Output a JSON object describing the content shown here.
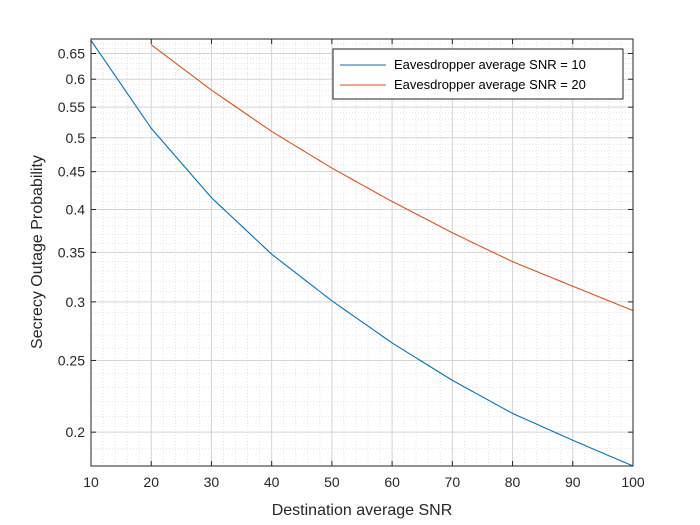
{
  "chart_data": {
    "type": "line",
    "xlabel": "Destination average SNR",
    "ylabel": "Secrecy Outage Probability",
    "xlim": [
      10,
      100
    ],
    "ylim": [
      0.18,
      0.68
    ],
    "yscale": "log",
    "grid": true,
    "minor_grid": true,
    "legend_position": "top-right",
    "x_ticks": [
      10,
      20,
      30,
      40,
      50,
      60,
      70,
      80,
      90,
      100
    ],
    "x_tick_labels": [
      "10",
      "20",
      "30",
      "40",
      "50",
      "60",
      "70",
      "80",
      "90",
      "100"
    ],
    "y_ticks": [
      0.2,
      0.25,
      0.3,
      0.35,
      0.4,
      0.45,
      0.5,
      0.55,
      0.6,
      0.65
    ],
    "y_tick_labels": [
      "0.2",
      "0.25",
      "0.3",
      "0.35",
      "0.4",
      "0.45",
      "0.5",
      "0.55",
      "0.6",
      "0.65"
    ],
    "series": [
      {
        "name": "Eavesdropper average SNR = 10",
        "color": "#0072BD",
        "x": [
          10,
          20,
          30,
          40,
          50,
          60,
          70,
          80,
          90,
          100
        ],
        "y": [
          0.677,
          0.515,
          0.415,
          0.348,
          0.301,
          0.264,
          0.235,
          0.212,
          0.195,
          0.18
        ]
      },
      {
        "name": "Eavesdropper average SNR = 20",
        "color": "#D95319",
        "x": [
          20,
          30,
          40,
          50,
          60,
          70,
          80,
          90,
          100
        ],
        "y": [
          0.668,
          0.58,
          0.51,
          0.455,
          0.41,
          0.372,
          0.34,
          0.315,
          0.292
        ]
      }
    ]
  }
}
